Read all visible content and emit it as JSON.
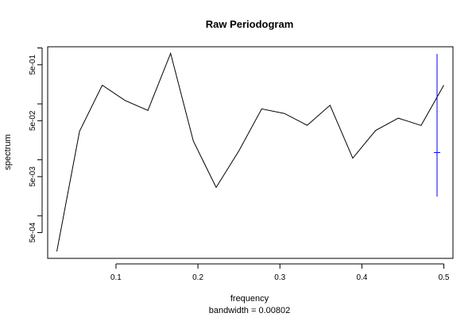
{
  "chart_data": {
    "type": "line",
    "title": "Raw Periodogram",
    "xlabel": "frequency",
    "sublabel": "bandwidth = 0.00802",
    "ylabel": "spectrum",
    "x_scale": "linear",
    "y_scale": "log",
    "xlim": [
      0.0167,
      0.5111
    ],
    "ylim": [
      0.000173,
      1.05
    ],
    "x_ticks": [
      {
        "value": 0.1,
        "label": "0.1"
      },
      {
        "value": 0.2,
        "label": "0.2"
      },
      {
        "value": 0.3,
        "label": "0.3"
      },
      {
        "value": 0.4,
        "label": "0.4"
      },
      {
        "value": 0.5,
        "label": "0.5"
      }
    ],
    "y_ticks": [
      {
        "value": 0.0005,
        "label": "5e-04"
      },
      {
        "value": 0.005,
        "label": "5e-03"
      },
      {
        "value": 0.05,
        "label": "5e-02"
      },
      {
        "value": 0.5,
        "label": "5e-01"
      }
    ],
    "y_minor_ticks": [
      0.001,
      0.01,
      0.1,
      1.0
    ],
    "grid": false,
    "line_color": "#000000",
    "ci_color": "#0000ff",
    "x": [
      0.0278,
      0.0556,
      0.0833,
      0.1111,
      0.1389,
      0.1667,
      0.1944,
      0.2222,
      0.25,
      0.2778,
      0.3056,
      0.3333,
      0.3611,
      0.3889,
      0.4167,
      0.4444,
      0.4722,
      0.5
    ],
    "y": [
      0.00023,
      0.0323,
      0.216,
      0.115,
      0.0764,
      0.8,
      0.0216,
      0.00321,
      0.0145,
      0.0814,
      0.0673,
      0.0414,
      0.0944,
      0.0107,
      0.0334,
      0.0555,
      0.0412,
      0.216
    ],
    "ci": {
      "x": 0.4917,
      "center": 0.0135,
      "lower": 0.0022,
      "upper": 0.78
    }
  }
}
